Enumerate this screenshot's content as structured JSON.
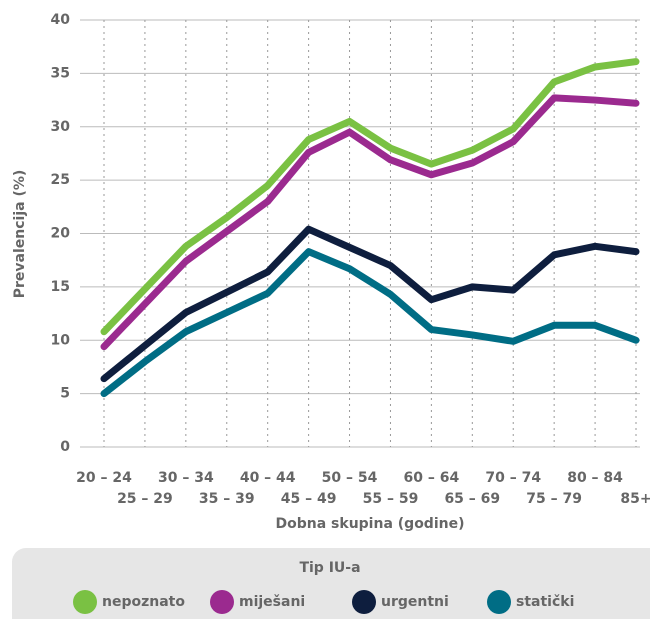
{
  "chart_data": {
    "type": "line",
    "y_label": "Prevalencija (%)",
    "x_label": "Dobna skupina (godine)",
    "legend_title": "Tip IU-a",
    "categories": [
      "20 – 24",
      "25 – 29",
      "30 – 34",
      "35 – 39",
      "40 – 44",
      "45 – 49",
      "50 – 54",
      "55 – 59",
      "60 – 64",
      "65 – 69",
      "70 – 74",
      "75 – 79",
      "80 – 84",
      "85+"
    ],
    "series": [
      {
        "name": "nepoznato",
        "color": "#7ac143",
        "values": [
          10.8,
          14.8,
          18.8,
          21.5,
          24.5,
          28.8,
          30.5,
          28,
          26.5,
          27.8,
          29.8,
          34.2,
          35.6,
          36.1
        ]
      },
      {
        "name": "miješani",
        "color": "#9b2a8f",
        "values": [
          9.4,
          13.4,
          17.4,
          20.2,
          23,
          27.6,
          29.5,
          26.9,
          25.5,
          26.6,
          28.6,
          32.7,
          32.5,
          32.2
        ]
      },
      {
        "name": "urgentni",
        "color": "#0e1e3e",
        "values": [
          6.4,
          9.5,
          12.6,
          14.5,
          16.4,
          20.4,
          18.7,
          17,
          13.8,
          15,
          14.7,
          18,
          18.8,
          18.3
        ]
      },
      {
        "name": "statički",
        "color": "#006d85",
        "values": [
          5,
          8,
          10.8,
          12.6,
          14.4,
          18.3,
          16.7,
          14.3,
          11,
          10.5,
          9.9,
          11.4,
          11.4,
          10
        ]
      }
    ],
    "ylim": [
      0,
      40
    ],
    "yticks": [
      0,
      5,
      10,
      15,
      20,
      25,
      30,
      35,
      40
    ],
    "grid": true
  }
}
